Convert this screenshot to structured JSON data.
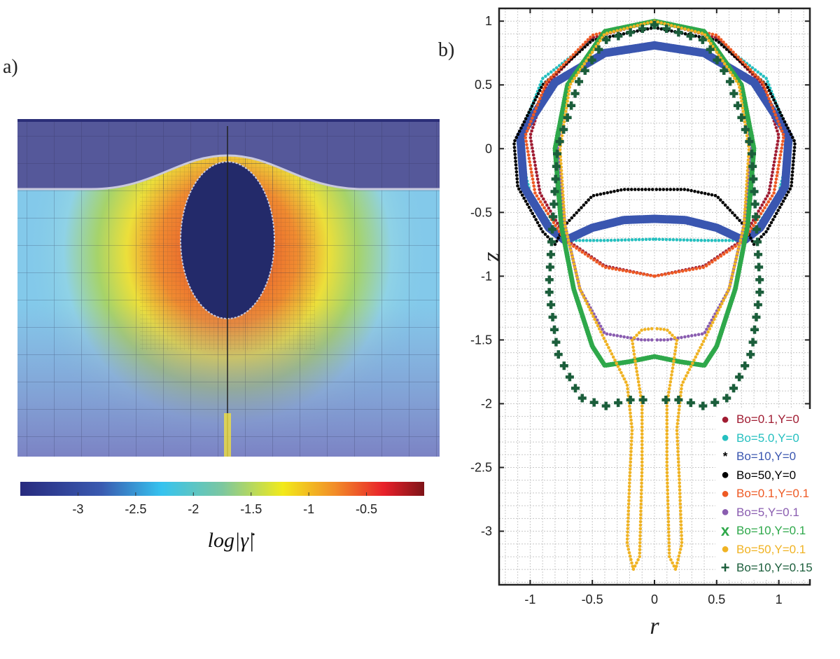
{
  "panel_a": {
    "label": "a)",
    "colorbar": {
      "range": [
        -3.5,
        0
      ],
      "ticks": [
        "-3",
        "-2.5",
        "-2",
        "-1.5",
        "-1",
        "-0.5"
      ],
      "tick_values": [
        -3,
        -2.5,
        -2,
        -1.5,
        -1,
        -0.5
      ],
      "label": "log|γ̇|",
      "colormap": "jet"
    }
  },
  "chart_data": {
    "type": "scatter",
    "panel_label": "b)",
    "xlabel": "r",
    "ylabel": "z",
    "xlim": [
      -1.25,
      1.25
    ],
    "ylim": [
      -3.42,
      1.1
    ],
    "xticks": [
      -1,
      -0.5,
      0,
      0.5,
      1
    ],
    "xtick_labels": [
      "-1",
      "-0.5",
      "0",
      "0.5",
      "1"
    ],
    "yticks": [
      1,
      0.5,
      0,
      -0.5,
      -1,
      -1.5,
      -2,
      -2.5,
      -3
    ],
    "ytick_labels": [
      "1",
      "0.5",
      "0",
      "-0.5",
      "-1",
      "-1.5",
      "-2",
      "-2.5",
      "-3"
    ],
    "grid": "minor dotted",
    "legend_position": "bottom-right",
    "symmetric_about_r0": true,
    "series": [
      {
        "name": "Bo=0.1,Y=0",
        "color": "#a01c32",
        "marker": "dot",
        "points": [
          [
            0,
            1
          ],
          [
            0.5,
            0.87
          ],
          [
            0.87,
            0.5
          ],
          [
            1.0,
            0.1
          ],
          [
            0.92,
            -0.35
          ],
          [
            0.7,
            -0.72
          ],
          [
            0.4,
            -0.92
          ],
          [
            0,
            -1
          ]
        ]
      },
      {
        "name": "Bo=5.0,Y=0",
        "color": "#26c0c0",
        "marker": "dot",
        "points": [
          [
            0,
            0.95
          ],
          [
            0.5,
            0.85
          ],
          [
            0.9,
            0.55
          ],
          [
            1.1,
            0.05
          ],
          [
            1.0,
            -0.35
          ],
          [
            0.75,
            -0.72
          ],
          [
            0.4,
            -0.72
          ],
          [
            0,
            -0.71
          ]
        ]
      },
      {
        "name": "Bo=10,Y=0",
        "color": "#3a56b0",
        "marker": "star",
        "points": [
          [
            0,
            0.81
          ],
          [
            0.4,
            0.75
          ],
          [
            0.8,
            0.52
          ],
          [
            1.08,
            0.1
          ],
          [
            1.05,
            -0.3
          ],
          [
            0.85,
            -0.62
          ],
          [
            0.72,
            -0.72
          ],
          [
            0.5,
            -0.62
          ],
          [
            0.25,
            -0.56
          ],
          [
            0,
            -0.55
          ]
        ]
      },
      {
        "name": "Bo=50,Y=0",
        "color": "#000000",
        "marker": "dot",
        "points": [
          [
            0,
            0.95
          ],
          [
            0.5,
            0.85
          ],
          [
            0.9,
            0.5
          ],
          [
            1.13,
            0.05
          ],
          [
            1.1,
            -0.3
          ],
          [
            0.9,
            -0.65
          ],
          [
            0.8,
            -0.75
          ],
          [
            0.72,
            -0.6
          ],
          [
            0.5,
            -0.37
          ],
          [
            0.25,
            -0.32
          ],
          [
            0,
            -0.32
          ]
        ]
      },
      {
        "name": "Bo=0.1,Y=0.1",
        "color": "#ee5a24",
        "marker": "dot",
        "points": [
          [
            0,
            1
          ],
          [
            0.5,
            0.89
          ],
          [
            0.87,
            0.52
          ],
          [
            1.04,
            0.1
          ],
          [
            0.96,
            -0.35
          ],
          [
            0.72,
            -0.72
          ],
          [
            0.4,
            -0.93
          ],
          [
            0,
            -1
          ]
        ]
      },
      {
        "name": "Bo=5,Y=0.1",
        "color": "#8a5db0",
        "marker": "dot",
        "points": [
          [
            0,
            1
          ],
          [
            0.4,
            0.9
          ],
          [
            0.7,
            0.5
          ],
          [
            0.78,
            0
          ],
          [
            0.72,
            -0.6
          ],
          [
            0.6,
            -1.1
          ],
          [
            0.4,
            -1.45
          ],
          [
            0.1,
            -1.5
          ],
          [
            0,
            -1.5
          ]
        ]
      },
      {
        "name": "Bo=10,Y=0.1",
        "color": "#2ea84a",
        "marker": "x",
        "points": [
          [
            0,
            1
          ],
          [
            0.4,
            0.92
          ],
          [
            0.7,
            0.5
          ],
          [
            0.8,
            0
          ],
          [
            0.75,
            -0.6
          ],
          [
            0.65,
            -1.1
          ],
          [
            0.5,
            -1.55
          ],
          [
            0.4,
            -1.7
          ],
          [
            0.2,
            -1.67
          ],
          [
            0,
            -1.63
          ]
        ]
      },
      {
        "name": "Bo=50,Y=0.1",
        "color": "#f0b323",
        "marker": "dot",
        "points": [
          [
            0,
            1
          ],
          [
            0.4,
            0.9
          ],
          [
            0.68,
            0.5
          ],
          [
            0.76,
            0
          ],
          [
            0.72,
            -0.6
          ],
          [
            0.6,
            -1.1
          ],
          [
            0.4,
            -1.5
          ],
          [
            0.22,
            -1.85
          ],
          [
            0.18,
            -2.2
          ],
          [
            0.2,
            -2.6
          ],
          [
            0.22,
            -3.1
          ],
          [
            0.17,
            -3.3
          ],
          [
            0.12,
            -3.2
          ],
          [
            0.1,
            -2.5
          ],
          [
            0.1,
            -2.0
          ],
          [
            0.15,
            -1.7
          ],
          [
            0.18,
            -1.5
          ],
          [
            0.1,
            -1.42
          ],
          [
            0,
            -1.41
          ]
        ]
      },
      {
        "name": "Bo=10,Y=0.15",
        "color": "#1b5e3b",
        "marker": "plus",
        "points": [
          [
            0,
            0.97
          ],
          [
            0.4,
            0.85
          ],
          [
            0.6,
            0.55
          ],
          [
            0.78,
            0
          ],
          [
            0.82,
            -0.6
          ],
          [
            0.85,
            -1.1
          ],
          [
            0.78,
            -1.6
          ],
          [
            0.6,
            -1.95
          ],
          [
            0.4,
            -2.02
          ],
          [
            0.2,
            -1.97
          ],
          [
            0,
            -1.97
          ]
        ]
      }
    ]
  }
}
